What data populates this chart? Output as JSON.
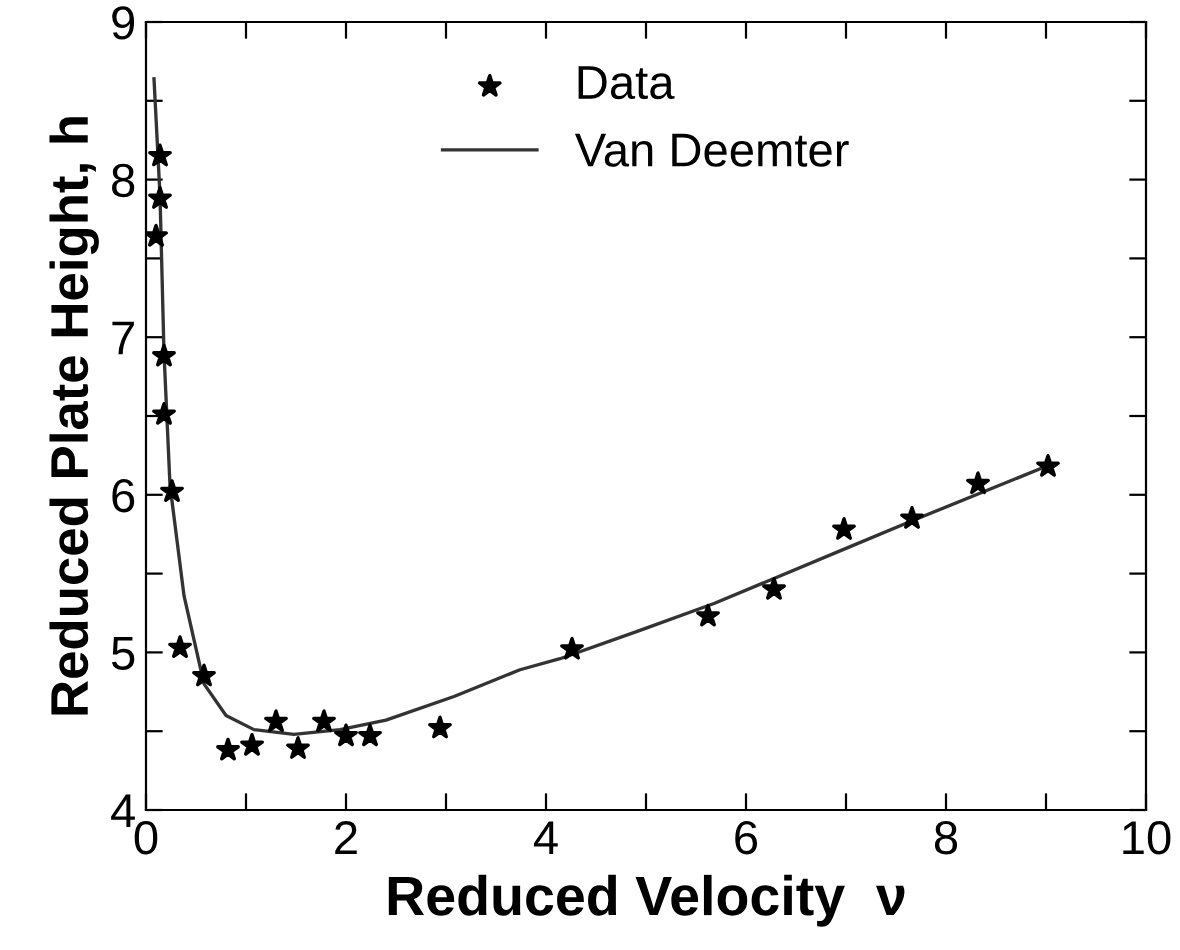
{
  "chart_data": {
    "type": "scatter",
    "xlabel": "Reduced Velocity  ν",
    "ylabel": "Reduced Plate Height, h",
    "xlim": [
      0,
      10
    ],
    "ylim": [
      4,
      9
    ],
    "xticks": [
      0,
      {
        "value": 1,
        "label": null
      },
      2,
      {
        "value": 3,
        "label": null
      },
      4,
      {
        "value": 5,
        "label": null
      },
      6,
      {
        "value": 7,
        "label": null
      },
      8,
      {
        "value": 9,
        "label": null
      },
      10
    ],
    "yticks": [
      4,
      {
        "value": 4.5,
        "label": null
      },
      5,
      {
        "value": 5.5,
        "label": null
      },
      6,
      {
        "value": 6.5,
        "label": null
      },
      7,
      {
        "value": 7.5,
        "label": null
      },
      8,
      {
        "value": 8.5,
        "label": null
      },
      9
    ],
    "grid": false,
    "legend": "top",
    "series": [
      {
        "name": "Data",
        "marker": "star",
        "color": "#000000",
        "x": [
          0.14,
          0.14,
          0.1,
          0.18,
          0.18,
          0.26,
          0.34,
          0.58,
          0.82,
          1.06,
          1.3,
          1.52,
          1.78,
          2.0,
          2.24,
          2.94,
          4.26,
          5.62,
          6.28,
          6.98,
          7.66,
          8.32,
          9.02
        ],
        "values": [
          8.15,
          7.88,
          7.64,
          6.88,
          6.51,
          6.02,
          5.03,
          4.85,
          4.38,
          4.41,
          4.56,
          4.39,
          4.56,
          4.47,
          4.47,
          4.52,
          5.02,
          5.23,
          5.4,
          5.78,
          5.85,
          6.07,
          6.18
        ]
      },
      {
        "name": "Van Deemter",
        "type": "line",
        "color": "#333333",
        "x": [
          0.08,
          0.14,
          0.18,
          0.24,
          0.38,
          0.58,
          0.8,
          1.08,
          1.48,
          1.94,
          2.4,
          3.08,
          3.74,
          4.14,
          4.94,
          5.68,
          7.0,
          7.68,
          9.0
        ],
        "values": [
          8.64,
          7.9,
          6.9,
          6.06,
          5.36,
          4.8,
          4.6,
          4.51,
          4.48,
          4.51,
          4.57,
          4.72,
          4.89,
          4.96,
          5.14,
          5.31,
          5.66,
          5.84,
          6.18
        ]
      }
    ]
  }
}
